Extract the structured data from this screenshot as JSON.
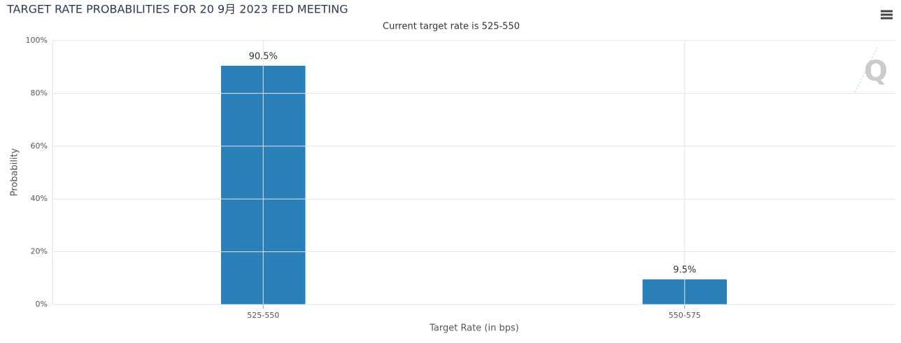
{
  "chart_data": {
    "type": "bar",
    "title": "TARGET RATE PROBABILITIES FOR 20 9月 2023 FED MEETING",
    "subtitle": "Current target rate is 525-550",
    "categories": [
      "525-550",
      "550-575"
    ],
    "values": [
      90.5,
      9.5
    ],
    "value_labels": [
      "90.5%",
      "9.5%"
    ],
    "color": "#2a7fb8",
    "x_label": "Target Rate (in bps)",
    "y_label": "Probability",
    "ylim": [
      0,
      100
    ],
    "yticks": [
      {
        "value": 0,
        "label": "0%"
      },
      {
        "value": 20,
        "label": "20%"
      },
      {
        "value": 40,
        "label": "40%"
      },
      {
        "value": 60,
        "label": "60%"
      },
      {
        "value": 80,
        "label": "80%"
      },
      {
        "value": 100,
        "label": "100%"
      }
    ],
    "grid": true
  }
}
